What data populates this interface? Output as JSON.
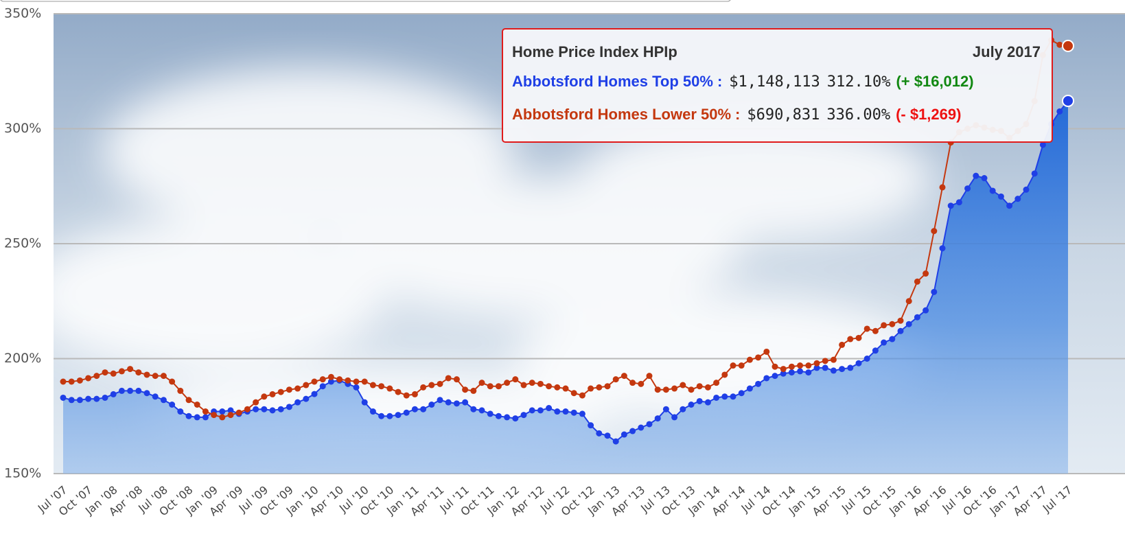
{
  "chart_data": {
    "type": "line",
    "categories": [
      "Jul '07",
      null,
      null,
      "Oct '07",
      null,
      null,
      "Jan '08",
      null,
      null,
      "Apr '08",
      null,
      null,
      "Jul '08",
      null,
      null,
      "Oct '08",
      null,
      null,
      "Jan '09",
      null,
      null,
      "Apr '09",
      null,
      null,
      "Jul '09",
      null,
      null,
      "Oct '09",
      null,
      null,
      "Jan '10",
      null,
      null,
      "Apr '10",
      null,
      null,
      "Jul '10",
      null,
      null,
      "Oct '10",
      null,
      null,
      "Jan '11",
      null,
      null,
      "Apr '11",
      null,
      null,
      "Jul '11",
      null,
      null,
      "Oct '11",
      null,
      null,
      "Jan '12",
      null,
      null,
      "Apr '12",
      null,
      null,
      "Jul '12",
      null,
      null,
      "Oct '12",
      null,
      null,
      "Jan '13",
      null,
      null,
      "Apr '13",
      null,
      null,
      "Jul '13",
      null,
      null,
      "Oct '13",
      null,
      null,
      "Jan '14",
      null,
      null,
      "Apr '14",
      null,
      null,
      "Jul '14",
      null,
      null,
      "Oct '14",
      null,
      null,
      "Jan '15",
      null,
      null,
      "Apr '15",
      null,
      null,
      "Jul '15",
      null,
      null,
      "Oct '15",
      null,
      null,
      "Jan '16",
      null,
      null,
      "Apr '16",
      null,
      null,
      "Jul '16",
      null,
      null,
      "Oct '16",
      null,
      null,
      "Jan '17",
      null,
      null,
      "Apr '17",
      null,
      null,
      "Jul '17"
    ],
    "series": [
      {
        "name": "Abbotsford Homes Top 50%",
        "color": "#1f3fe6",
        "area": true,
        "values": [
          183,
          182,
          182,
          182.5,
          182.5,
          183,
          184.5,
          186,
          186,
          186,
          185,
          183.5,
          182,
          180,
          177,
          175,
          174.5,
          174.5,
          177,
          177,
          177.5,
          176,
          177,
          178,
          178,
          177.5,
          178,
          179,
          181,
          182.5,
          184.6,
          188,
          190,
          190.5,
          189,
          187.5,
          181,
          177,
          175,
          175,
          175.5,
          176.5,
          178,
          178,
          180,
          182,
          181,
          180.5,
          181,
          178,
          177.5,
          176,
          175,
          174.5,
          174,
          175.5,
          177.5,
          177.5,
          178.5,
          177,
          177,
          176.5,
          176,
          171,
          167.5,
          166.5,
          164,
          167,
          168.5,
          170,
          171.5,
          174,
          178,
          174.5,
          178,
          180,
          181.5,
          181,
          183,
          183.5,
          183.5,
          185,
          187,
          189,
          191.5,
          192.5,
          193.5,
          194,
          194.5,
          194,
          196,
          196,
          194.8,
          195.5,
          196,
          198,
          200,
          203.5,
          207,
          208.5,
          212,
          215,
          218,
          221,
          229,
          248,
          266.5,
          268,
          274,
          279.5,
          278.5,
          273,
          270.5,
          266.5,
          269.5,
          273.5,
          280.5,
          293,
          302,
          307.5,
          312.1
        ]
      },
      {
        "name": "Abbotsford Homes Lower 50%",
        "color": "#c4380f",
        "area": false,
        "values": [
          190,
          190,
          190.5,
          191.5,
          192.5,
          194,
          193.5,
          194.5,
          195.5,
          194,
          193,
          192.5,
          192.5,
          190,
          186,
          182,
          180,
          177,
          175.5,
          174.5,
          175.5,
          176.5,
          178,
          181,
          183.5,
          184.5,
          185.5,
          186.5,
          187,
          188.5,
          190,
          191,
          192,
          191,
          190.5,
          190,
          190,
          188.5,
          188,
          187,
          185.5,
          184,
          184.5,
          187.5,
          188.5,
          189,
          191.5,
          191,
          186.5,
          186,
          189.5,
          188,
          188,
          189.5,
          191,
          188.5,
          189.5,
          189,
          188,
          187.5,
          187,
          185,
          184,
          187,
          187.5,
          188,
          191,
          192.5,
          189.5,
          189,
          192.5,
          186.5,
          186.5,
          187,
          188.5,
          186.5,
          188,
          187.5,
          189.5,
          193,
          197,
          197,
          199.5,
          200.5,
          203,
          196.5,
          195.5,
          196.5,
          197,
          197,
          198,
          199,
          199.5,
          206,
          208.5,
          209,
          213,
          212,
          214.5,
          215,
          216.5,
          225,
          233.5,
          237,
          255.5,
          274.5,
          294,
          298.5,
          300,
          301.5,
          300.5,
          299.5,
          299,
          296,
          299,
          302,
          312,
          332,
          338.5,
          336.5,
          336
        ]
      }
    ],
    "ylim": [
      150,
      350
    ],
    "yticks": [
      {
        "value": 150,
        "label": "150%"
      },
      {
        "value": 200,
        "label": "200%"
      },
      {
        "value": 250,
        "label": "250%"
      },
      {
        "value": 300,
        "label": "300%"
      },
      {
        "value": 350,
        "label": "350%"
      }
    ],
    "grid": true,
    "tooltip": {
      "title": "Home Price Index HPIp",
      "date": "July 2017",
      "separator": ":",
      "rows": [
        {
          "price": "$1,148,113",
          "index": "312.10%",
          "change": "(+ $16,012)",
          "change_color": "#118811"
        },
        {
          "price": "$690,831",
          "index": "336.00%",
          "change": "(- $1,269)",
          "change_color": "#ee1111"
        }
      ]
    }
  }
}
